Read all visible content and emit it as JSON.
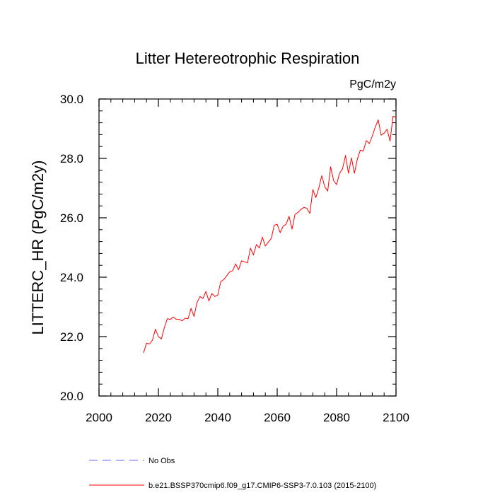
{
  "chart_data": {
    "type": "line",
    "title": "Litter Hetereotrophic Respiration",
    "units_label": "PgC/m2y",
    "ylabel": "LITTERC_HR  (PgC/m2y)",
    "xlabel": "",
    "xlim": [
      2000,
      2100
    ],
    "ylim": [
      20.0,
      30.0
    ],
    "x_ticks": [
      2000,
      2020,
      2040,
      2060,
      2080,
      2100
    ],
    "x_tick_labels": [
      "2000",
      "2020",
      "2040",
      "2060",
      "2080",
      "2100"
    ],
    "y_ticks": [
      20.0,
      22.0,
      24.0,
      26.0,
      28.0,
      30.0
    ],
    "y_tick_labels": [
      "20.0",
      "22.0",
      "24.0",
      "26.0",
      "28.0",
      "30.0"
    ],
    "grid": false,
    "legend_position": "bottom-left",
    "series": [
      {
        "name": "b.e21.BSSP370cmip6.f09_g17.CMIP6-SSP3-7.0.103 (2015-2100)",
        "color": "#ff0000",
        "style": "solid",
        "x": [
          2015,
          2016,
          2017,
          2018,
          2019,
          2020,
          2021,
          2022,
          2023,
          2024,
          2025,
          2026,
          2027,
          2028,
          2029,
          2030,
          2031,
          2032,
          2033,
          2034,
          2035,
          2036,
          2037,
          2038,
          2039,
          2040,
          2041,
          2042,
          2043,
          2044,
          2045,
          2046,
          2047,
          2048,
          2049,
          2050,
          2051,
          2052,
          2053,
          2054,
          2055,
          2056,
          2057,
          2058,
          2059,
          2060,
          2061,
          2062,
          2063,
          2064,
          2065,
          2066,
          2067,
          2068,
          2069,
          2070,
          2071,
          2072,
          2073,
          2074,
          2075,
          2076,
          2077,
          2078,
          2079,
          2080,
          2081,
          2082,
          2083,
          2084,
          2085,
          2086,
          2087,
          2088,
          2089,
          2090,
          2091,
          2092,
          2093,
          2094,
          2095,
          2096,
          2097,
          2098,
          2099,
          2100
        ],
        "values": [
          21.45,
          21.78,
          21.75,
          21.88,
          22.25,
          22.0,
          21.92,
          22.3,
          22.6,
          22.58,
          22.66,
          22.58,
          22.58,
          22.53,
          22.62,
          22.6,
          22.95,
          22.68,
          23.15,
          23.35,
          23.28,
          23.52,
          23.2,
          23.45,
          23.35,
          23.4,
          23.85,
          23.92,
          24.05,
          24.18,
          24.22,
          24.45,
          24.25,
          24.55,
          24.52,
          24.48,
          24.98,
          24.75,
          25.1,
          24.98,
          25.35,
          25.05,
          25.18,
          25.3,
          25.75,
          25.78,
          25.5,
          25.72,
          25.78,
          26.05,
          25.62,
          26.12,
          26.18,
          26.28,
          26.35,
          26.32,
          26.15,
          26.95,
          26.68,
          27.0,
          27.42,
          27.05,
          26.9,
          27.72,
          27.25,
          27.12,
          27.5,
          27.65,
          28.1,
          27.5,
          28.02,
          27.5,
          27.98,
          28.28,
          28.25,
          28.6,
          28.5,
          28.75,
          29.05,
          29.3,
          28.78,
          28.85,
          28.98,
          28.58,
          29.42,
          29.38
        ]
      },
      {
        "name": "No Obs",
        "color": "#6666ff",
        "style": "dashed",
        "x": [],
        "values": []
      }
    ]
  }
}
